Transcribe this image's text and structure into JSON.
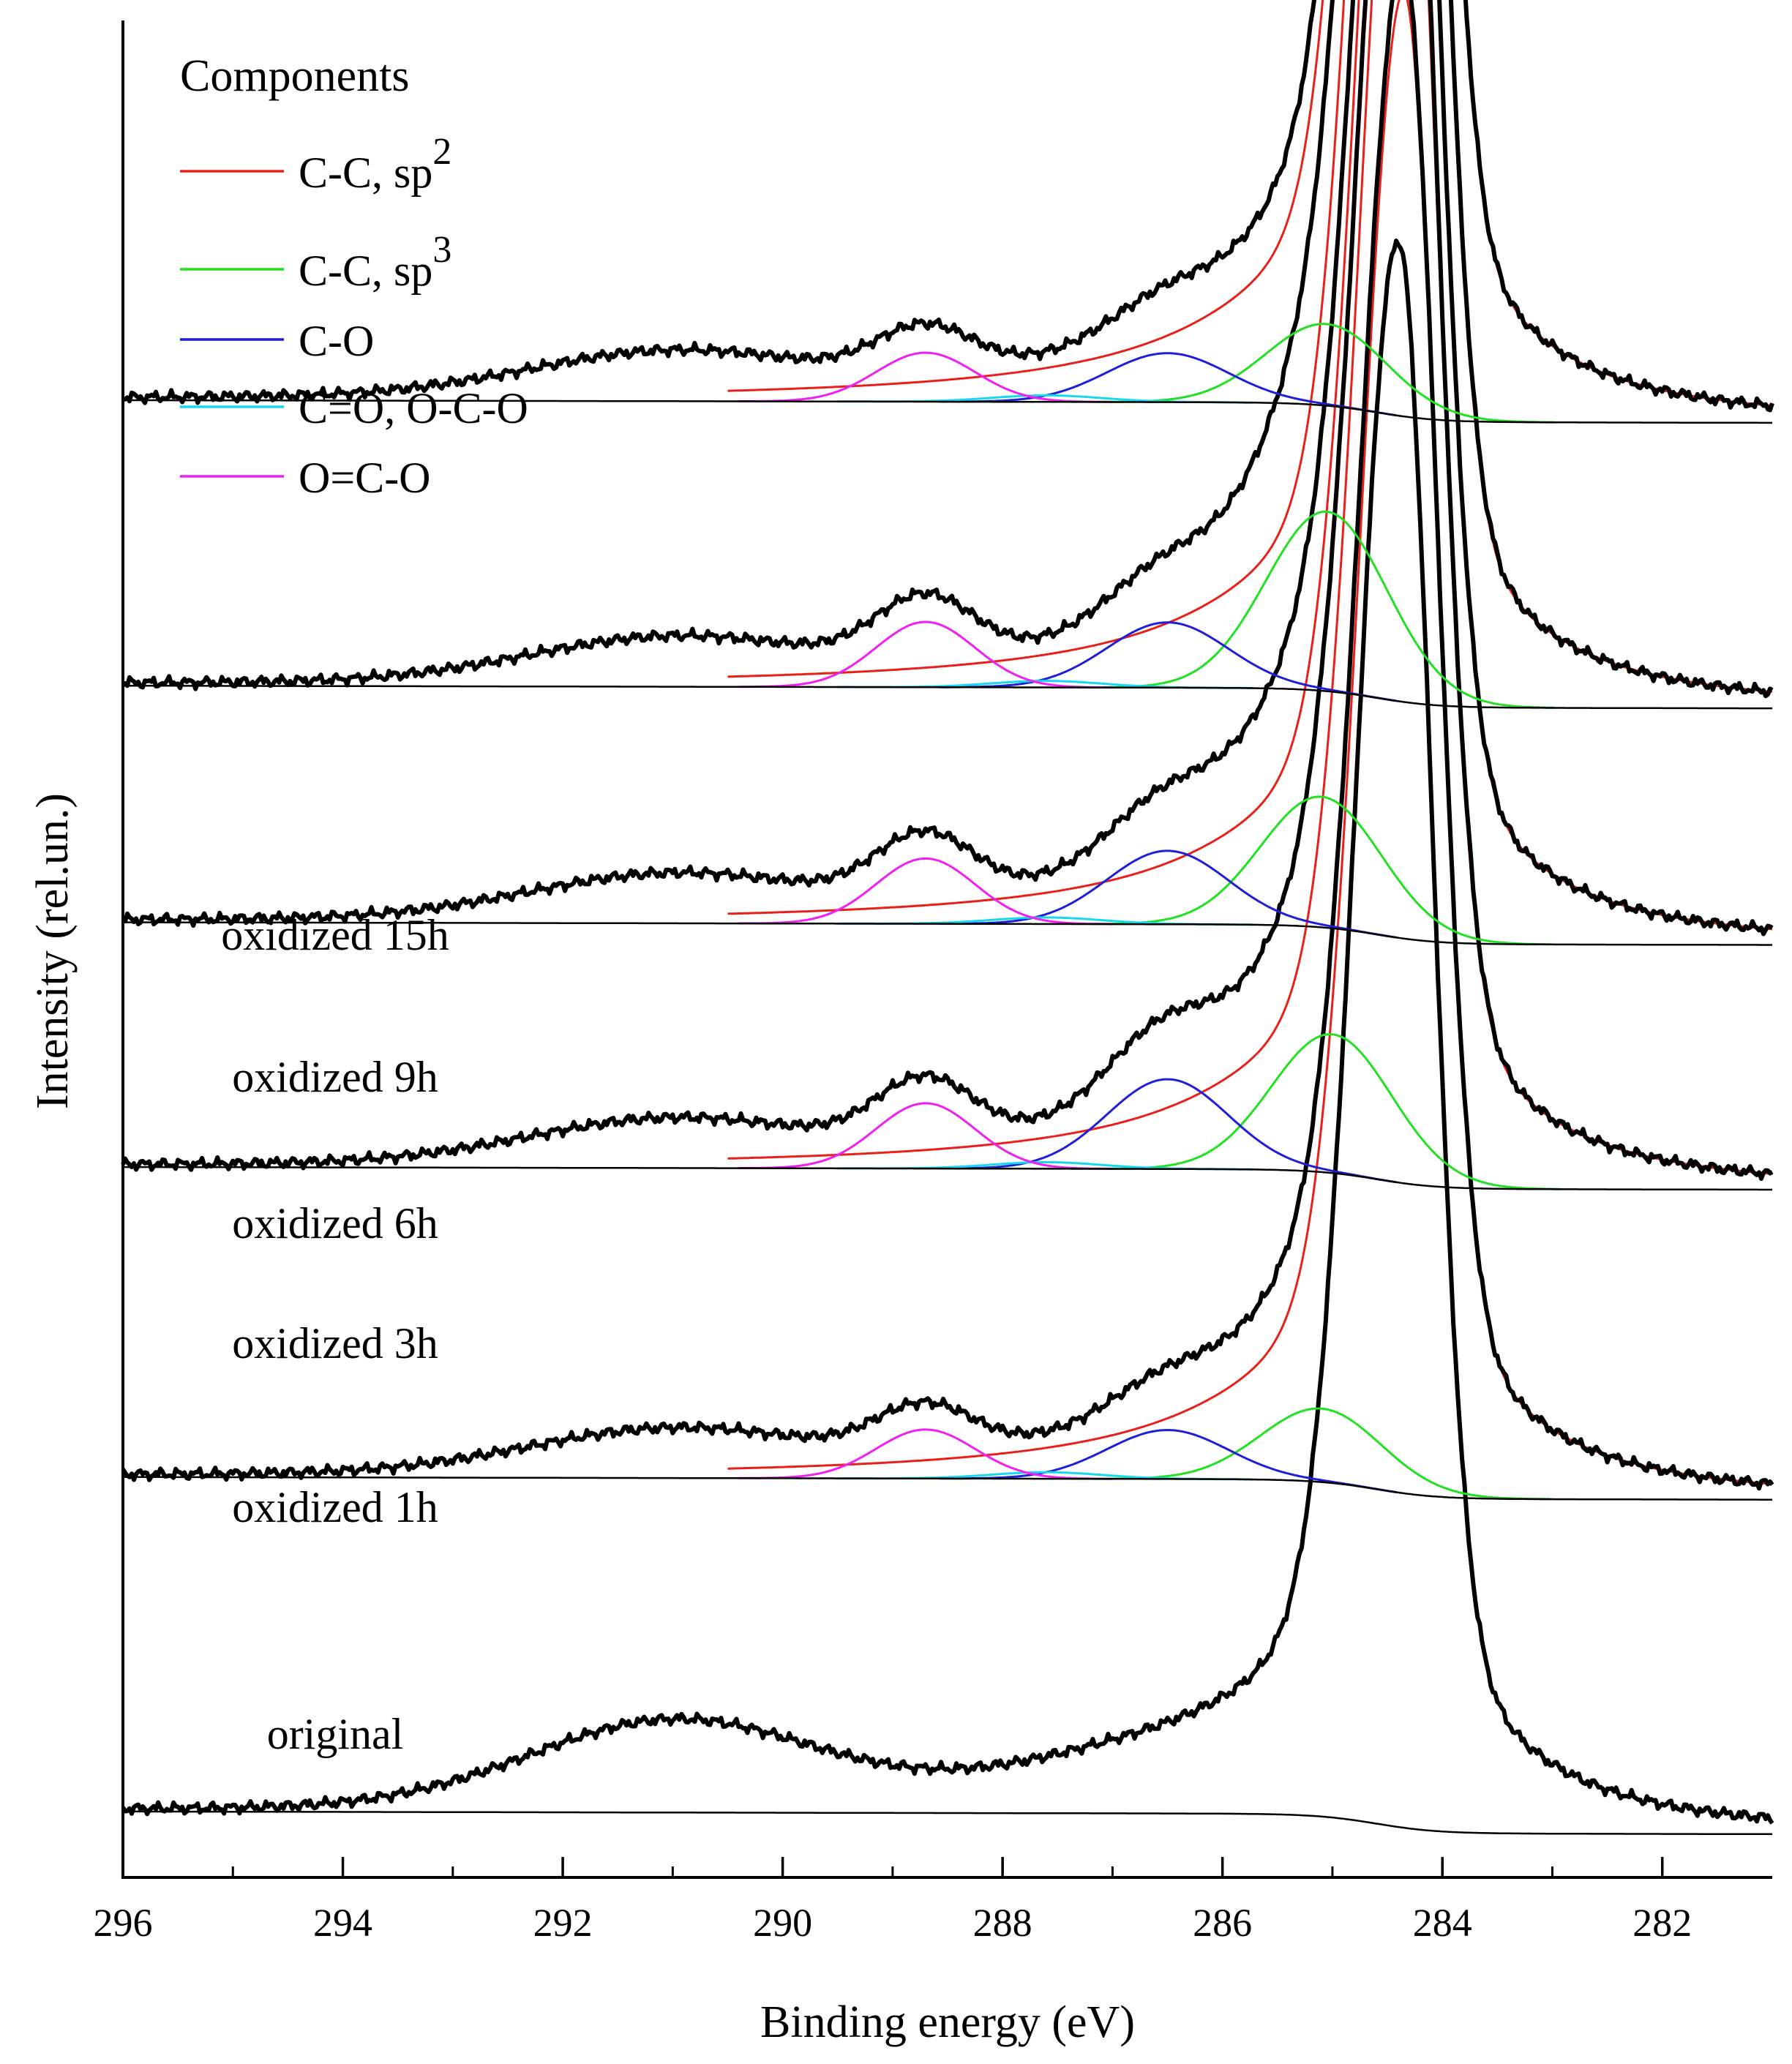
{
  "chart_data": {
    "type": "line",
    "title": "",
    "xlabel": "Binding energy (eV)",
    "ylabel": "Intensity (rel.un.)",
    "xlim": [
      296,
      281
    ],
    "x_reversed": true,
    "x_ticks": [
      296,
      294,
      292,
      290,
      288,
      286,
      284,
      282
    ],
    "x_tick_labels": [
      "296",
      "294",
      "292",
      "290",
      "288",
      "286",
      "284",
      "282"
    ],
    "y_ticks_shown": false,
    "grid": false,
    "legend": {
      "placement": "top-left",
      "title": "Components",
      "entries": [
        {
          "name": "C-C, sp",
          "sup": "2",
          "color": "#e8201a"
        },
        {
          "name": "C-C, sp",
          "sup": "3",
          "color": "#22e022"
        },
        {
          "name": "C-O",
          "sup": "",
          "color": "#1f1fd6"
        },
        {
          "name": "C=O, O-C-O",
          "sup": "",
          "color": "#18d8f0"
        },
        {
          "name": "O=C-O",
          "sup": "",
          "color": "#f020f0"
        }
      ]
    },
    "series": [
      {
        "label": "original",
        "offset": 0,
        "peak_height": 97,
        "components": []
      },
      {
        "label": "oxidized 1h",
        "offset": 20.5,
        "peak_height": 94,
        "components": [
          {
            "name": "C-C, sp2",
            "center": 284.35,
            "height": 92
          },
          {
            "name": "C-C, sp3",
            "center": 285.1,
            "height": 4.5
          },
          {
            "name": "C-O",
            "center": 286.5,
            "height": 3
          },
          {
            "name": "C=O, O-C-O",
            "center": 287.6,
            "height": 0.4
          },
          {
            "name": "O=C-O",
            "center": 288.7,
            "height": 3
          }
        ]
      },
      {
        "label": "oxidized 3h",
        "offset": 39.5,
        "peak_height": 95,
        "components": [
          {
            "name": "C-C, sp2",
            "center": 284.35,
            "height": 93
          },
          {
            "name": "C-C, sp3",
            "center": 285.0,
            "height": 8.5
          },
          {
            "name": "C-O",
            "center": 286.5,
            "height": 5.5
          },
          {
            "name": "C=O, O-C-O",
            "center": 287.6,
            "height": 0.4
          },
          {
            "name": "O=C-O",
            "center": 288.7,
            "height": 4
          }
        ]
      },
      {
        "label": "oxidized 6h",
        "offset": 54.5,
        "peak_height": 95,
        "components": [
          {
            "name": "C-C, sp2",
            "center": 284.35,
            "height": 93
          },
          {
            "name": "C-C, sp3",
            "center": 285.1,
            "height": 8
          },
          {
            "name": "C-O",
            "center": 286.5,
            "height": 4.5
          },
          {
            "name": "C=O, O-C-O",
            "center": 287.6,
            "height": 0.4
          },
          {
            "name": "O=C-O",
            "center": 288.7,
            "height": 4
          }
        ]
      },
      {
        "label": "oxidized 9h",
        "offset": 69,
        "peak_height": 100,
        "components": [
          {
            "name": "C-C, sp2",
            "center": 284.35,
            "height": 98
          },
          {
            "name": "C-C, sp3",
            "center": 285.05,
            "height": 11
          },
          {
            "name": "C-O",
            "center": 286.5,
            "height": 4
          },
          {
            "name": "C=O, O-C-O",
            "center": 287.6,
            "height": 0.4
          },
          {
            "name": "O=C-O",
            "center": 288.7,
            "height": 4
          }
        ]
      },
      {
        "label": "oxidized 15h",
        "offset": 86.5,
        "peak_height": 103,
        "components": [
          {
            "name": "C-C, sp2",
            "center": 284.35,
            "height": 101
          },
          {
            "name": "C-C, sp3",
            "center": 285.05,
            "height": 5
          },
          {
            "name": "C-O",
            "center": 286.5,
            "height": 3
          },
          {
            "name": "C=O, O-C-O",
            "center": 287.6,
            "height": 0.4
          },
          {
            "name": "O=C-O",
            "center": 288.7,
            "height": 3
          }
        ]
      }
    ]
  }
}
